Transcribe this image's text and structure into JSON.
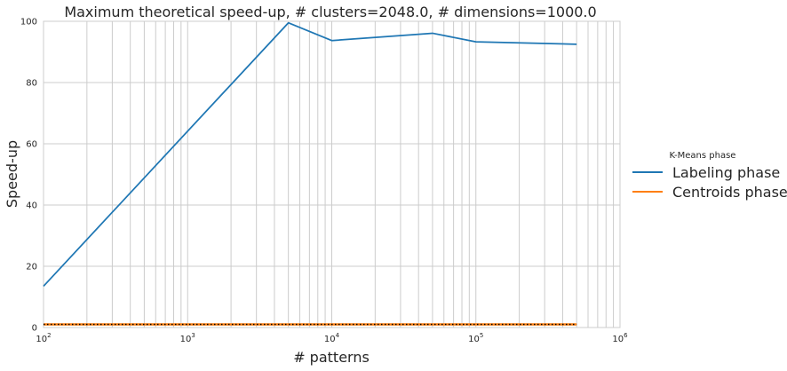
{
  "chart_data": {
    "type": "line",
    "title": "Maximum theoretical speed-up, # clusters=2048.0, # dimensions=1000.0",
    "xlabel": "# patterns",
    "ylabel": "Speed-up",
    "xscale": "log",
    "xlim": [
      100,
      1000000
    ],
    "ylim": [
      0,
      100
    ],
    "xticks": [
      {
        "base": "10",
        "exp": "2"
      },
      {
        "base": "10",
        "exp": "3"
      },
      {
        "base": "10",
        "exp": "4"
      },
      {
        "base": "10",
        "exp": "5"
      },
      {
        "base": "10",
        "exp": "6"
      }
    ],
    "yticks": [
      "0",
      "20",
      "40",
      "60",
      "80",
      "100"
    ],
    "grid": true,
    "legend": {
      "title": "K-Means phase",
      "placement": "right"
    },
    "series": [
      {
        "name": "Labeling phase",
        "color": "#1f77b4",
        "x": [
          100,
          5000,
          10000,
          50000,
          100000,
          500000
        ],
        "y": [
          13.5,
          99.5,
          93.7,
          96.1,
          93.3,
          92.5
        ]
      },
      {
        "name": "Centroids phase",
        "color": "#ff7f0e",
        "x": [
          100,
          500000
        ],
        "y": [
          1.0,
          1.0
        ]
      }
    ],
    "reference_line": {
      "y": 1.0,
      "color": "#000000",
      "style": "dotted"
    }
  }
}
